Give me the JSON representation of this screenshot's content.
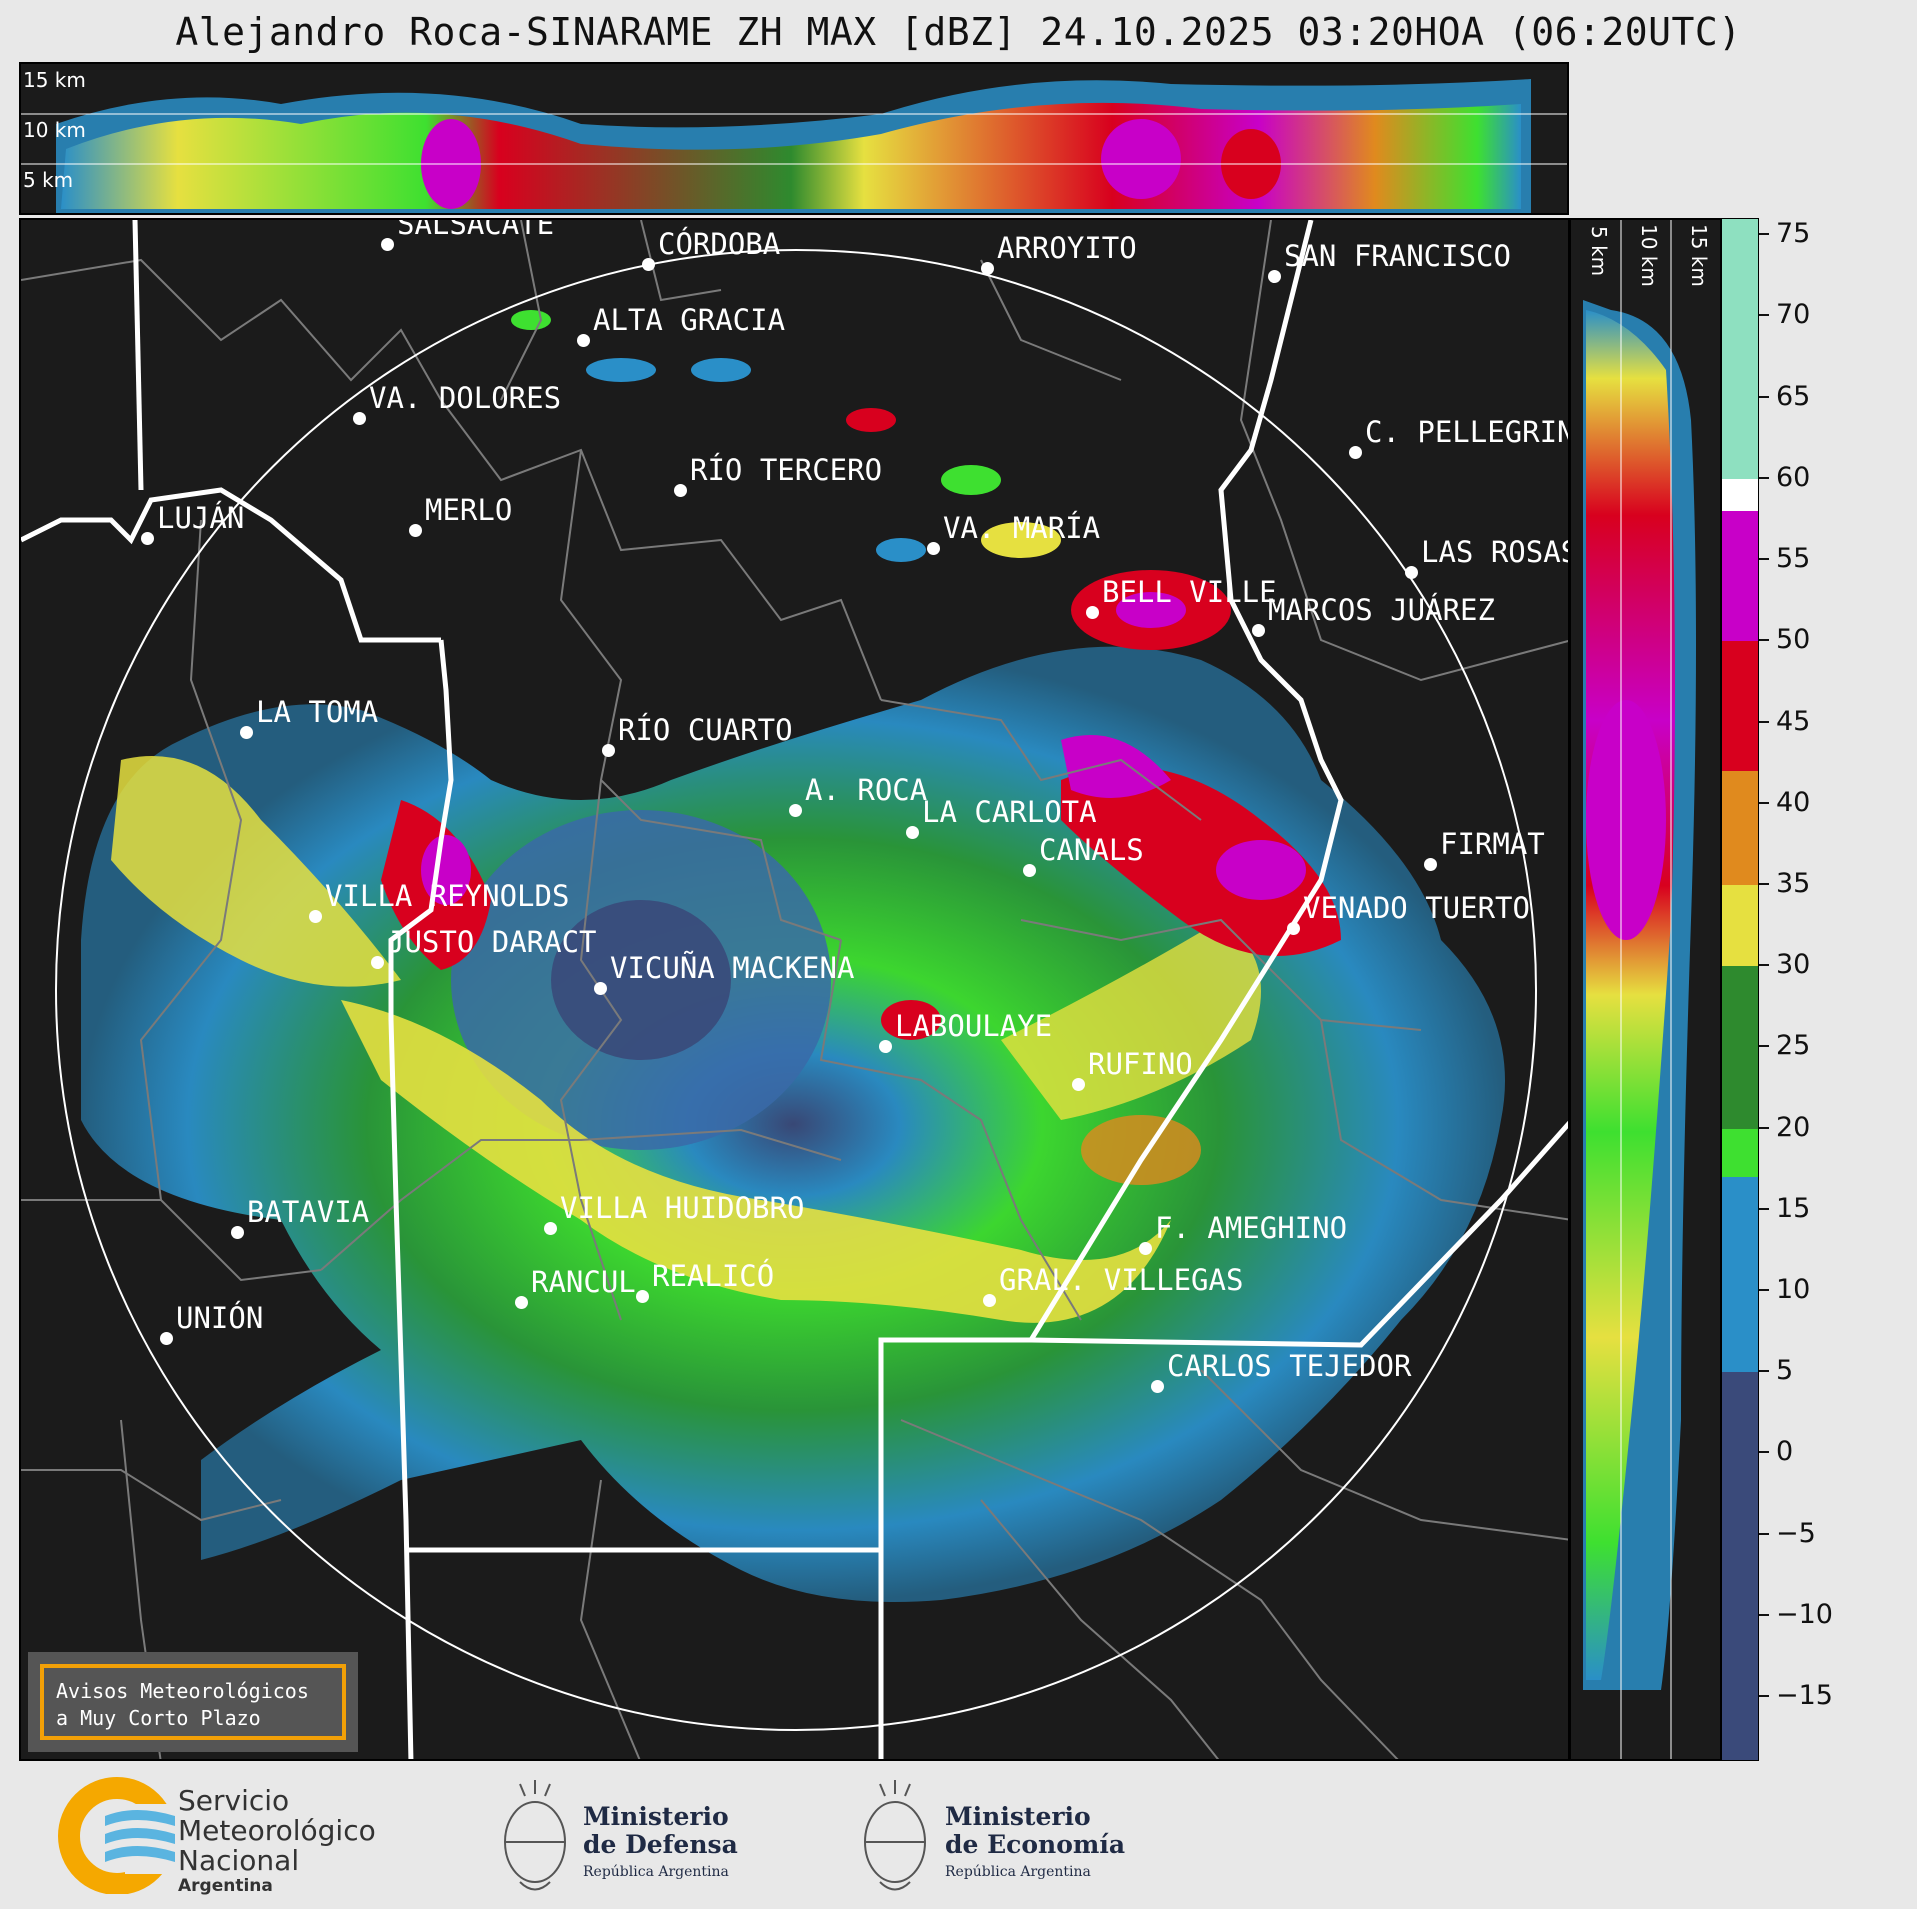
{
  "title": "Alejandro Roca-SINARAME ZH MAX [dBZ] 24.10.2025 03:20HOA (06:20UTC)",
  "top_panel": {
    "km_labels": [
      "15 km",
      "10 km",
      "5 km"
    ]
  },
  "side_panel": {
    "km_labels": [
      "5 km",
      "10 km",
      "15 km"
    ]
  },
  "colorbar": {
    "unit": "dBZ",
    "range": [
      -19,
      76
    ],
    "ticks": [
      "75",
      "70",
      "65",
      "60",
      "55",
      "50",
      "45",
      "40",
      "35",
      "30",
      "25",
      "20",
      "15",
      "10",
      "5",
      "0",
      "−5",
      "−10",
      "−15"
    ],
    "bands": [
      {
        "from": 60,
        "to": 76,
        "color": "#8ee0c0"
      },
      {
        "from": 58,
        "to": 60,
        "color": "#ffffff"
      },
      {
        "from": 50,
        "to": 58,
        "color": "#c800c8"
      },
      {
        "from": 42,
        "to": 50,
        "color": "#d8001e"
      },
      {
        "from": 35,
        "to": 42,
        "color": "#e08a1e"
      },
      {
        "from": 30,
        "to": 35,
        "color": "#e6e040"
      },
      {
        "from": 20,
        "to": 30,
        "color": "#2e8a2e"
      },
      {
        "from": 17,
        "to": 20,
        "color": "#3ee030"
      },
      {
        "from": 5,
        "to": 17,
        "color": "#2a8fc8"
      },
      {
        "from": -19,
        "to": 5,
        "color": "#3a4a7a"
      }
    ]
  },
  "cities": [
    {
      "name": "SALSACATE"
    },
    {
      "name": "CÓRDOBA"
    },
    {
      "name": "ARROYITO"
    },
    {
      "name": "SAN FRANCISCO"
    },
    {
      "name": "ALTA GRACIA"
    },
    {
      "name": "VA. DOLORES"
    },
    {
      "name": "C. PELLEGRINI"
    },
    {
      "name": "RÍO TERCERO"
    },
    {
      "name": "LUJÁN"
    },
    {
      "name": "MERLO"
    },
    {
      "name": "VA. MARÍA"
    },
    {
      "name": "LAS ROSAS"
    },
    {
      "name": "BELL VILLE"
    },
    {
      "name": "MARCOS JUÁREZ"
    },
    {
      "name": "LA TOMA"
    },
    {
      "name": "RÍO CUARTO"
    },
    {
      "name": "A. ROCA"
    },
    {
      "name": "LA CARLOTA"
    },
    {
      "name": "FIRMAT"
    },
    {
      "name": "CANALS"
    },
    {
      "name": "VILLA REYNOLDS"
    },
    {
      "name": "VENADO TUERTO"
    },
    {
      "name": "JUSTO DARACT"
    },
    {
      "name": "VICUÑA MACKENA"
    },
    {
      "name": "LABOULAYE"
    },
    {
      "name": "RUFINO"
    },
    {
      "name": "BATAVIA"
    },
    {
      "name": "VILLA HUIDOBRO"
    },
    {
      "name": "F. AMEGHINO"
    },
    {
      "name": "RANCUL"
    },
    {
      "name": "REALICÓ"
    },
    {
      "name": "GRAL. VILLEGAS"
    },
    {
      "name": "UNIÓN"
    },
    {
      "name": "CARLOS TEJEDOR"
    }
  ],
  "avisos": {
    "line1": "Avisos Meteorológicos",
    "line2": "a Muy Corto Plazo"
  },
  "footer": {
    "smn": {
      "line1": "Servicio",
      "line2": "Meteorológico",
      "line3": "Nacional",
      "line4": "Argentina"
    },
    "defensa": {
      "line1": "Ministerio",
      "line2": "de Defensa",
      "line3": "República Argentina"
    },
    "economia": {
      "line1": "Ministerio",
      "line2": "de Economía",
      "line3": "República Argentina"
    }
  }
}
